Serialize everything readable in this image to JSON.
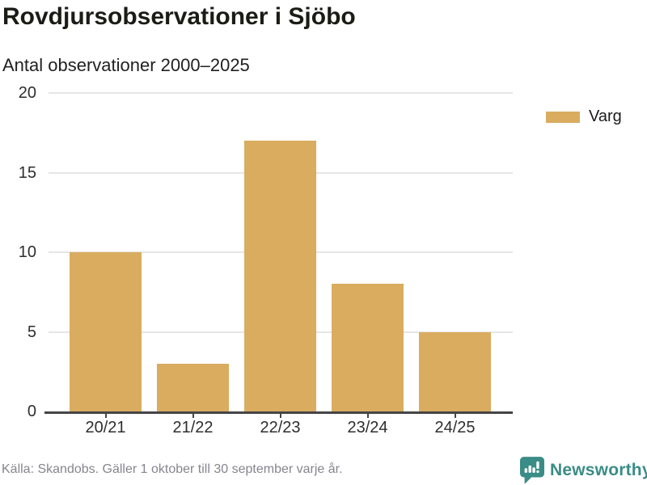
{
  "header": {
    "title": "Rovdjursobservationer i Sjöbo",
    "subtitle": "Antal observationer 2000–2025"
  },
  "legend": {
    "items": [
      {
        "label": "Varg",
        "color": "#d9ac5f"
      }
    ]
  },
  "chart_data": {
    "type": "bar",
    "title": "Rovdjursobservationer i Sjöbo",
    "subtitle": "Antal observationer 2000–2025",
    "categories": [
      "20/21",
      "21/22",
      "22/23",
      "23/24",
      "24/25"
    ],
    "series": [
      {
        "name": "Varg",
        "values": [
          10,
          3,
          17,
          8,
          5
        ]
      }
    ],
    "xlabel": "",
    "ylabel": "",
    "ylim": [
      0,
      20
    ],
    "yticks": [
      0,
      5,
      10,
      15,
      20
    ],
    "grid": true,
    "legend_position": "top-right",
    "bar_color": "#d9ac5f",
    "gridline_color": "#e6e6e6",
    "axis_line_color": "#454545"
  },
  "footer": {
    "source": "Källa: Skandobs. Gäller 1 oktober till 30 september varje år.",
    "brand": "Newsworthy",
    "brand_color": "#3a8c86"
  }
}
